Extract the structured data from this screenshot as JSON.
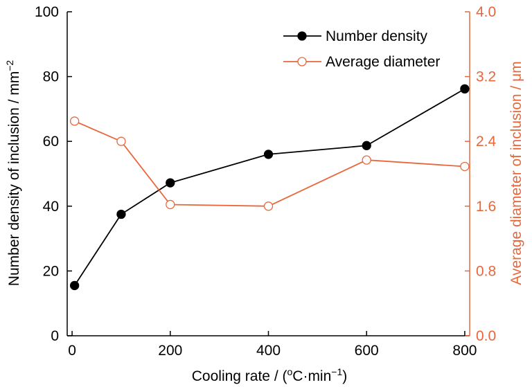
{
  "chart_data": {
    "type": "line",
    "x": [
      5,
      100,
      200,
      400,
      600,
      800
    ],
    "xlim": [
      -10,
      810
    ],
    "xticks": [
      0,
      200,
      400,
      600,
      800
    ],
    "xlabel": {
      "main": "Cooling rate / (",
      "sup1": "o",
      "mid": "C·min",
      "sup2": "−1",
      "end": ")"
    },
    "y_left": {
      "label": {
        "main": "Number density of inclusion / mm",
        "sup": "−2"
      },
      "lim": [
        0,
        100
      ],
      "ticks": [
        0,
        20,
        40,
        60,
        80,
        100
      ]
    },
    "y_right": {
      "label": "Average diameter of inclusion / μm",
      "lim": [
        0,
        4
      ],
      "ticks": [
        "0.0",
        "0.8",
        "1.6",
        "2.4",
        "3.2",
        "4.0"
      ],
      "color": "#e8673a"
    },
    "series": [
      {
        "name": "Number density",
        "axis": "left",
        "values": [
          15.5,
          37.5,
          47.2,
          56.0,
          58.7,
          76.2
        ],
        "color": "#000000",
        "marker": "filled-circle"
      },
      {
        "name": "Average diameter",
        "axis": "right",
        "values": [
          2.65,
          2.4,
          1.62,
          1.6,
          2.17,
          2.09
        ],
        "color": "#e8673a",
        "marker": "open-circle"
      }
    ],
    "legend_position": "top-right",
    "grid": false
  }
}
